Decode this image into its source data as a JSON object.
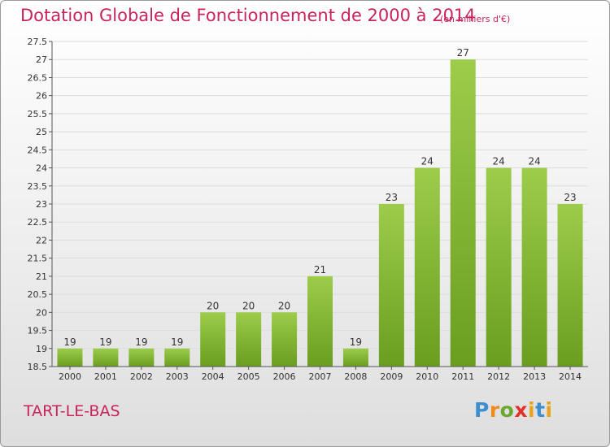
{
  "title": "Dotation Globale de Fonctionnement de 2000 à 2014",
  "subtitle": "(en milliers d'€)",
  "commune": "TART-LE-BAS",
  "logo": {
    "text": "Proxiti"
  },
  "colors": {
    "title": "#c8245a",
    "bar_top": "#9ccc4a",
    "bar_bottom": "#6a9e1f",
    "grid": "#dddddd",
    "axis": "#555555"
  },
  "chart_data": {
    "type": "bar",
    "title": "Dotation Globale de Fonctionnement de 2000 à 2014",
    "subtitle": "(en milliers d'€)",
    "xlabel": "",
    "ylabel": "",
    "categories": [
      "2000",
      "2001",
      "2002",
      "2003",
      "2004",
      "2005",
      "2006",
      "2007",
      "2008",
      "2009",
      "2010",
      "2011",
      "2012",
      "2013",
      "2014"
    ],
    "values": [
      19,
      19,
      19,
      19,
      20,
      20,
      20,
      21,
      19,
      23,
      24,
      27,
      24,
      24,
      23
    ],
    "data_labels": [
      "19",
      "19",
      "19",
      "19",
      "20",
      "20",
      "20",
      "21",
      "19",
      "23",
      "24",
      "27",
      "24",
      "24",
      "23"
    ],
    "ylim": [
      18.5,
      27.5
    ],
    "yticks": [
      "18.5",
      "19",
      "19.5",
      "20",
      "20.5",
      "21",
      "21.5",
      "22",
      "22.5",
      "23",
      "23.5",
      "24",
      "24.5",
      "25",
      "25.5",
      "26",
      "26.5",
      "27",
      "27.5"
    ],
    "grid": true
  }
}
